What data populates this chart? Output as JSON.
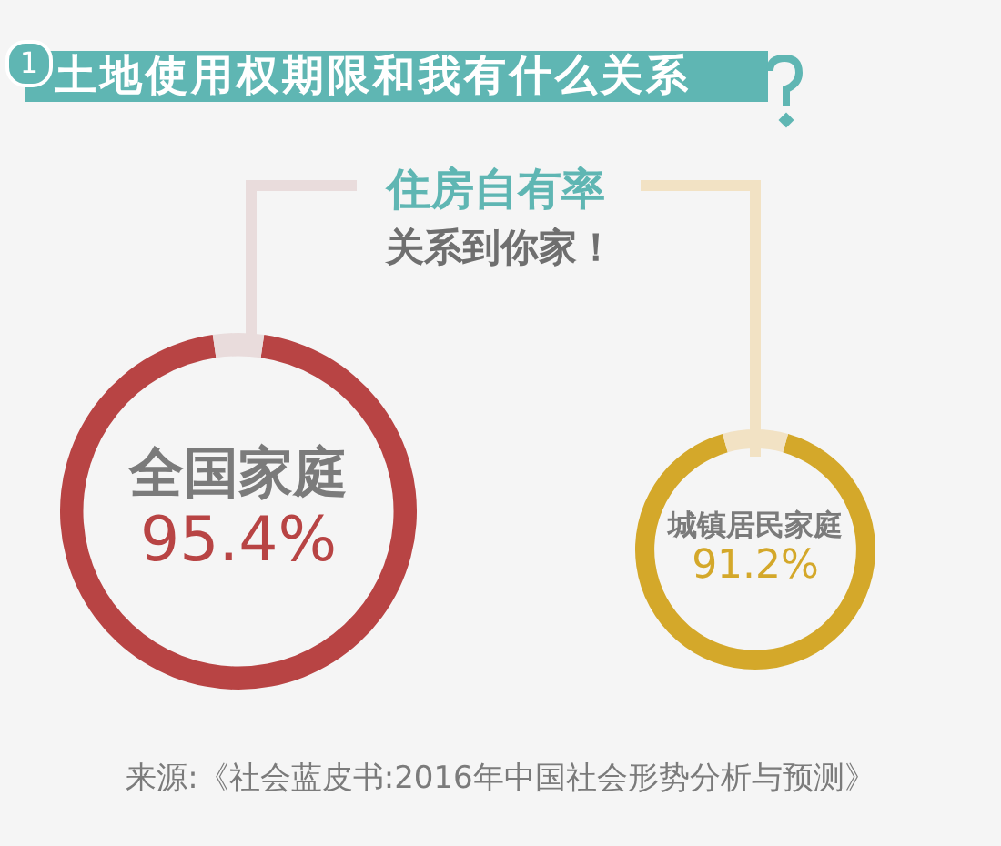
{
  "chart_data": [
    {
      "type": "donut",
      "title": "土地使用权期限和我有什么关系",
      "subtitle": "住房自有率",
      "annotations": [
        "1",
        "关系到你家！",
        "来源:《社会蓝皮书:2016年中国社会形势分析与预测》"
      ],
      "categories": [
        "全国家庭",
        null
      ],
      "values": [
        95.4,
        4.6
      ],
      "colors": [
        "#b84444",
        "#e9dcdc"
      ],
      "value_labels": [
        "95.4%",
        null
      ]
    },
    {
      "type": "donut",
      "categories": [
        "城镇居民家庭",
        null
      ],
      "values": [
        91.2,
        8.8
      ],
      "colors": [
        "#d4a82a",
        "#f2e2c4"
      ],
      "value_labels": [
        "91.2%",
        null
      ]
    }
  ]
}
